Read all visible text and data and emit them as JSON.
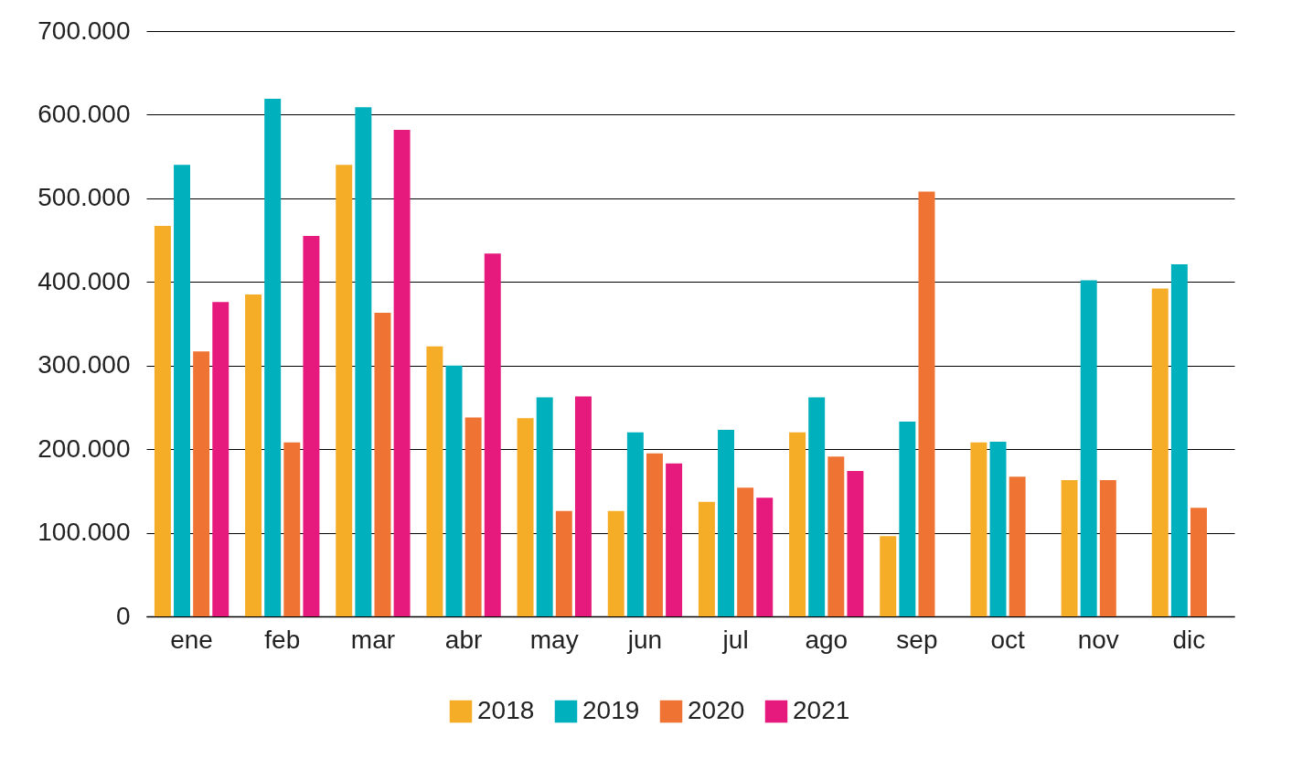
{
  "chart_data": {
    "type": "bar",
    "categories": [
      "ene",
      "feb",
      "mar",
      "abr",
      "may",
      "jun",
      "jul",
      "ago",
      "sep",
      "oct",
      "nov",
      "dic"
    ],
    "series": [
      {
        "name": "2018",
        "color": "#f5ac27",
        "values": [
          467000,
          385000,
          540000,
          323000,
          237000,
          126000,
          137000,
          220000,
          96000,
          208000,
          163000,
          392000
        ]
      },
      {
        "name": "2019",
        "color": "#00b0bd",
        "values": [
          540000,
          619000,
          609000,
          300000,
          262000,
          220000,
          223000,
          262000,
          233000,
          209000,
          402000,
          421000
        ]
      },
      {
        "name": "2020",
        "color": "#ef7434",
        "values": [
          317000,
          208000,
          363000,
          238000,
          126000,
          195000,
          154000,
          191000,
          508000,
          167000,
          163000,
          130000
        ]
      },
      {
        "name": "2021",
        "color": "#e6197d",
        "values": [
          376000,
          455000,
          582000,
          434000,
          263000,
          183000,
          142000,
          174000,
          null,
          null,
          null,
          null
        ]
      }
    ],
    "ylim": [
      0,
      700000
    ],
    "yticks": [
      {
        "value": 0,
        "label": "0"
      },
      {
        "value": 100000,
        "label": "100.000"
      },
      {
        "value": 200000,
        "label": "200.000"
      },
      {
        "value": 300000,
        "label": "300.000"
      },
      {
        "value": 400000,
        "label": "400.000"
      },
      {
        "value": 500000,
        "label": "500.000"
      },
      {
        "value": 600000,
        "label": "600.000"
      },
      {
        "value": 700000,
        "label": "700.000"
      }
    ],
    "grid": "y",
    "legend": "bottom"
  }
}
